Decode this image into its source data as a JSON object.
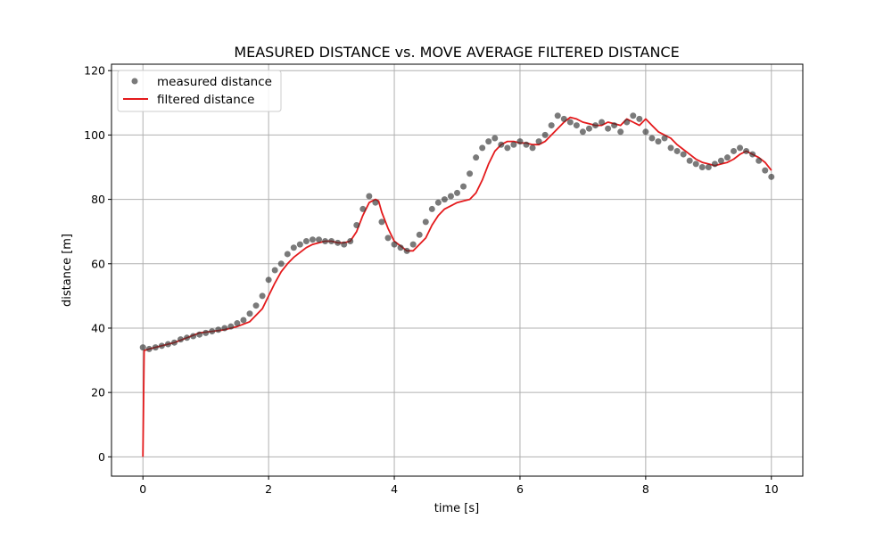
{
  "chart_data": {
    "type": "line",
    "title": "MEASURED DISTANCE vs. MOVE AVERAGE FILTERED DISTANCE",
    "xlabel": "time [s]",
    "ylabel": "distance [m]",
    "xlim": [
      -0.5,
      10.5
    ],
    "ylim": [
      -6,
      122
    ],
    "xticks": [
      0,
      2,
      4,
      6,
      8,
      10
    ],
    "yticks": [
      0,
      20,
      40,
      60,
      80,
      100,
      120
    ],
    "grid": true,
    "legend_position": "top-left",
    "colors": {
      "measured": "#333333",
      "filtered": "#e41a1c",
      "grid": "#b0b0b0"
    },
    "series": [
      {
        "name": "measured distance",
        "kind": "scatter",
        "x": [
          0.0,
          0.1,
          0.2,
          0.3,
          0.4,
          0.5,
          0.6,
          0.7,
          0.8,
          0.9,
          1.0,
          1.1,
          1.2,
          1.3,
          1.4,
          1.5,
          1.6,
          1.7,
          1.8,
          1.9,
          2.0,
          2.1,
          2.2,
          2.3,
          2.4,
          2.5,
          2.6,
          2.7,
          2.8,
          2.9,
          3.0,
          3.1,
          3.2,
          3.3,
          3.4,
          3.5,
          3.6,
          3.7,
          3.8,
          3.9,
          4.0,
          4.1,
          4.2,
          4.3,
          4.4,
          4.5,
          4.6,
          4.7,
          4.8,
          4.9,
          5.0,
          5.1,
          5.2,
          5.3,
          5.4,
          5.5,
          5.6,
          5.7,
          5.8,
          5.9,
          6.0,
          6.1,
          6.2,
          6.3,
          6.4,
          6.5,
          6.6,
          6.7,
          6.8,
          6.9,
          7.0,
          7.1,
          7.2,
          7.3,
          7.4,
          7.5,
          7.6,
          7.7,
          7.8,
          7.9,
          8.0,
          8.1,
          8.2,
          8.3,
          8.4,
          8.5,
          8.6,
          8.7,
          8.8,
          8.9,
          9.0,
          9.1,
          9.2,
          9.3,
          9.4,
          9.5,
          9.6,
          9.7,
          9.8,
          9.9,
          10.0
        ],
        "y": [
          34,
          33.5,
          34,
          34.5,
          35,
          35.5,
          36.5,
          37,
          37.5,
          38,
          38.5,
          39,
          39.5,
          40,
          40.5,
          41.5,
          42.5,
          44.5,
          47,
          50,
          55,
          58,
          60,
          63,
          65,
          66,
          67,
          67.5,
          67.5,
          67,
          67,
          66.5,
          66,
          67,
          72,
          77,
          81,
          79,
          73,
          68,
          66,
          65,
          64,
          66,
          69,
          73,
          77,
          79,
          80,
          81,
          82,
          84,
          88,
          93,
          96,
          98,
          99,
          97,
          96,
          97,
          98,
          97,
          96,
          98,
          100,
          103,
          106,
          105,
          104,
          103,
          101,
          102,
          103,
          104,
          102,
          103,
          101,
          104,
          106,
          105,
          101,
          99,
          98,
          99,
          96,
          95,
          94,
          92,
          91,
          90,
          90,
          91,
          92,
          93,
          95,
          96,
          95,
          94,
          92,
          89,
          87
        ],
        "jitter_note": ""
      },
      {
        "name": "filtered distance",
        "kind": "line",
        "x": [
          0.0,
          0.02,
          0.1,
          0.3,
          0.5,
          0.7,
          0.9,
          1.1,
          1.3,
          1.5,
          1.7,
          1.9,
          2.0,
          2.1,
          2.2,
          2.3,
          2.4,
          2.5,
          2.6,
          2.7,
          2.8,
          2.9,
          3.0,
          3.1,
          3.2,
          3.3,
          3.4,
          3.5,
          3.6,
          3.7,
          3.75,
          3.8,
          3.9,
          4.0,
          4.1,
          4.2,
          4.3,
          4.4,
          4.5,
          4.6,
          4.7,
          4.8,
          4.9,
          5.0,
          5.1,
          5.2,
          5.3,
          5.4,
          5.5,
          5.6,
          5.7,
          5.8,
          5.9,
          6.0,
          6.1,
          6.2,
          6.3,
          6.4,
          6.5,
          6.6,
          6.7,
          6.8,
          6.9,
          7.0,
          7.1,
          7.2,
          7.3,
          7.4,
          7.5,
          7.6,
          7.7,
          7.8,
          7.9,
          8.0,
          8.1,
          8.2,
          8.3,
          8.4,
          8.5,
          8.6,
          8.7,
          8.8,
          8.9,
          9.0,
          9.1,
          9.2,
          9.3,
          9.4,
          9.5,
          9.6,
          9.7,
          9.8,
          9.9,
          10.0
        ],
        "y": [
          0,
          33,
          33.5,
          34.5,
          35.5,
          37,
          38.5,
          39,
          39.5,
          40.5,
          42,
          46,
          50,
          54,
          57.5,
          60,
          62,
          63.5,
          65,
          66,
          66.5,
          67,
          67,
          66.5,
          66.5,
          67,
          70,
          75,
          79,
          80,
          79.5,
          76,
          71,
          67,
          65.5,
          64,
          64,
          66,
          68,
          72,
          75,
          77,
          78,
          79,
          79.5,
          80,
          82,
          86,
          91,
          95,
          97,
          98,
          98,
          97.5,
          97.5,
          97,
          97,
          98,
          100,
          102,
          104,
          105.5,
          105,
          104,
          103.5,
          103,
          103,
          104,
          103.5,
          103,
          105,
          104,
          103,
          105,
          103,
          101,
          100,
          99,
          97,
          95.5,
          94,
          92.5,
          91.5,
          91,
          90.5,
          91,
          91.5,
          92.5,
          94,
          95,
          94,
          93,
          91.5,
          89
        ]
      }
    ]
  }
}
